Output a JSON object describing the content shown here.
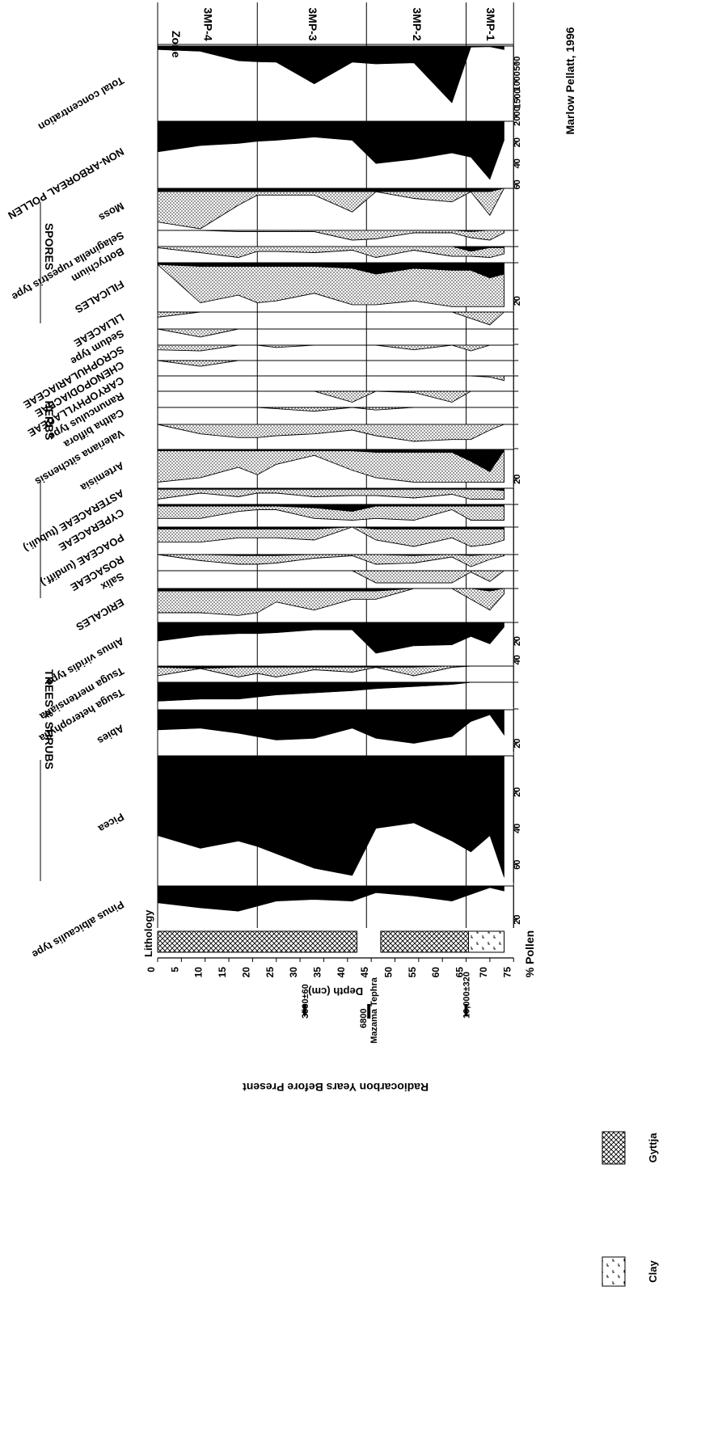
{
  "chart_data": {
    "type": "area",
    "orientation": "rotated-90-clockwise",
    "credit": "Marlow Pellatt, 1996",
    "depth_axis": {
      "label": "Depth (cm)",
      "ticks": [
        0,
        5,
        10,
        15,
        20,
        25,
        30,
        35,
        40,
        45,
        50,
        55,
        60,
        65,
        70,
        75
      ],
      "range": [
        0,
        75
      ]
    },
    "samples_depth": [
      0,
      9,
      17,
      21,
      25,
      33,
      41,
      46,
      54,
      62,
      66,
      70,
      73
    ],
    "radiocarbon": {
      "label": "Radiocarbon Years Before Present",
      "dates": [
        {
          "label": "3530±60",
          "depth": 31
        },
        {
          "label": "Mazama Tephra",
          "depth": 44.5
        },
        {
          "label": "6800",
          "depth": 44.5
        },
        {
          "label": "10,000±320",
          "depth": 65
        }
      ]
    },
    "lithology": {
      "label": "Lithology",
      "units": [
        {
          "type": "Gyttja",
          "from": 0,
          "to": 42
        },
        {
          "type": "Tephra gap",
          "from": 42,
          "to": 47
        },
        {
          "type": "Gyttja",
          "from": 47,
          "to": 65.5
        },
        {
          "type": "Clay",
          "from": 65.5,
          "to": 73
        }
      ],
      "legend": [
        "Gyttja",
        "Clay"
      ]
    },
    "pollen_axis_label": "% Pollen",
    "groups": [
      {
        "name": "TREES & SHRUBS"
      },
      {
        "name": "HERBS"
      },
      {
        "name": "SPORES"
      }
    ],
    "zones": {
      "header": "Zone",
      "boundaries": [
        21,
        44,
        65
      ],
      "labels": [
        {
          "name": "3MP-4",
          "from": 0,
          "to": 21
        },
        {
          "name": "3MP-3",
          "from": 21,
          "to": 44
        },
        {
          "name": "3MP-2",
          "from": 44,
          "to": 65
        },
        {
          "name": "3MP-1",
          "from": 65,
          "to": 75
        }
      ]
    },
    "series": [
      {
        "name": "Pinus albicaulis type",
        "max": 25,
        "ticks": [
          "20"
        ],
        "values": [
          10,
          13,
          15,
          12,
          9,
          8,
          9,
          4,
          6,
          9,
          5,
          1,
          3
        ]
      },
      {
        "name": "Picea",
        "max": 70,
        "ticks": [
          "20",
          "40",
          "60"
        ],
        "values": [
          44,
          51,
          47,
          50,
          54,
          62,
          66,
          40,
          37,
          47,
          53,
          44,
          67
        ]
      },
      {
        "name": "Abies",
        "max": 25,
        "ticks": [
          "20"
        ],
        "values": [
          12,
          11,
          14,
          16,
          18,
          17,
          11,
          17,
          20,
          16,
          7,
          3,
          15
        ]
      },
      {
        "name": "Tsuga heterophylla",
        "max": 12,
        "values": [
          9,
          8,
          8,
          7,
          6,
          5,
          4,
          3,
          2,
          1,
          0,
          0,
          0
        ],
        "exaggeration": [
          9,
          8,
          8,
          7,
          6,
          5,
          4,
          3,
          2,
          1,
          0,
          0,
          0
        ]
      },
      {
        "name": "Tsuga mertensiana",
        "max": 12,
        "values": [
          1,
          2,
          1,
          1,
          1,
          1,
          1,
          1,
          1,
          0,
          0,
          0,
          0
        ],
        "exaggeration": [
          8,
          2,
          9,
          6,
          9,
          3,
          5,
          1,
          8,
          1,
          0,
          0,
          0
        ]
      },
      {
        "name": "Alnus viridis type",
        "max": 45,
        "ticks": [
          "20",
          "40"
        ],
        "values": [
          20,
          14,
          12,
          12,
          11,
          8,
          8,
          33,
          25,
          24,
          15,
          23,
          5
        ]
      },
      {
        "name": "ERICALES",
        "max": 12,
        "values": [
          1,
          1,
          1,
          1,
          1,
          1,
          1,
          1,
          0,
          0,
          0,
          1,
          0
        ],
        "exaggeration": [
          9,
          9,
          10,
          9,
          5,
          8,
          4,
          4,
          0,
          0,
          4,
          8,
          2
        ]
      },
      {
        "name": "Salix",
        "max": 12,
        "values": [
          0,
          0,
          0,
          0,
          0,
          0,
          0,
          0,
          0,
          0,
          0,
          0,
          0
        ],
        "exaggeration": [
          0,
          0,
          0,
          0,
          0,
          0,
          0,
          9,
          9,
          9,
          1,
          8,
          0
        ]
      },
      {
        "name": "ROSACEAE",
        "max": 12,
        "values": [
          0,
          0,
          1,
          1,
          1,
          0,
          0,
          0,
          1,
          0,
          1,
          0,
          0
        ],
        "exaggeration": [
          0,
          5,
          8,
          8,
          7,
          3,
          1,
          8,
          7,
          2,
          10,
          4,
          1
        ]
      },
      {
        "name": "POACEAE (undiff.)",
        "max": 12,
        "values": [
          1,
          1,
          1,
          1,
          1,
          1,
          0,
          1,
          1,
          1,
          1,
          1,
          1
        ],
        "exaggeration": [
          7,
          7,
          5,
          5,
          5,
          6,
          0,
          6,
          9,
          5,
          9,
          8,
          6
        ]
      },
      {
        "name": "CYPERACEAE",
        "max": 12,
        "values": [
          1,
          1,
          1,
          1,
          1,
          2,
          4,
          1,
          1,
          1,
          1,
          1,
          1
        ],
        "exaggeration": [
          8,
          8,
          4,
          3,
          3,
          8,
          9,
          8,
          9,
          3,
          9,
          9,
          9
        ]
      },
      {
        "name": "ASTERACEAE (tubuli.)",
        "max": 12,
        "values": [
          1,
          1,
          1,
          1,
          1,
          1,
          1,
          1,
          1,
          1,
          1,
          1,
          2
        ],
        "exaggeration": [
          9,
          4,
          7,
          4,
          4,
          7,
          6,
          6,
          8,
          5,
          9,
          9,
          9
        ]
      },
      {
        "name": "Artemisia",
        "max": 25,
        "ticks": [
          "20"
        ],
        "values": [
          1,
          1,
          1,
          1,
          1,
          1,
          1,
          2,
          2,
          2,
          8,
          15,
          1
        ],
        "exaggeration": [
          22,
          19,
          12,
          17,
          10,
          4,
          14,
          19,
          22,
          22,
          22,
          22,
          22
        ]
      },
      {
        "name": "Valeriana sitchensis",
        "max": 12,
        "values": [
          0,
          0,
          0,
          0,
          0,
          0,
          0,
          0,
          0,
          0,
          0,
          0,
          0
        ],
        "exaggeration": [
          0,
          5,
          7,
          7,
          6,
          5,
          3,
          6,
          9,
          8,
          8,
          3,
          0
        ]
      },
      {
        "name": "Caltha biflora",
        "max": 12,
        "values": [
          0,
          0,
          0,
          0,
          0,
          0,
          0,
          0,
          0,
          0,
          0,
          0,
          0
        ],
        "exaggeration": [
          0,
          0,
          0,
          0,
          1,
          3,
          0,
          2,
          0,
          0,
          0,
          0,
          0
        ]
      },
      {
        "name": "Ranunculus type",
        "max": 12,
        "values": [
          0,
          0,
          0,
          0,
          0,
          0,
          0,
          0,
          0,
          0,
          0,
          0,
          0
        ],
        "exaggeration": [
          0,
          0,
          0,
          0,
          0,
          0,
          9,
          0,
          1,
          9,
          0,
          0,
          0
        ]
      },
      {
        "name": "CARYOPHYLLACEAE",
        "max": 12,
        "values": [
          0,
          0,
          0,
          0,
          0,
          0,
          0,
          0,
          0,
          0,
          0,
          0,
          0
        ],
        "exaggeration": [
          0,
          0,
          0,
          0,
          0,
          0,
          0,
          0,
          0,
          0,
          0,
          1,
          4
        ]
      },
      {
        "name": "CHENOPODIACEAE",
        "max": 12,
        "values": [
          0,
          0,
          0,
          0,
          0,
          0,
          0,
          0,
          0,
          0,
          0,
          0,
          0
        ],
        "exaggeration": [
          0,
          5,
          0,
          0,
          0,
          0,
          0,
          0,
          0,
          0,
          0,
          0,
          0
        ]
      },
      {
        "name": "SCROPHULARIACEAE",
        "max": 12,
        "values": [
          0,
          0,
          0,
          0,
          0,
          0,
          0,
          0,
          0,
          0,
          0,
          0,
          0
        ],
        "exaggeration": [
          4,
          5,
          0,
          0,
          2,
          0,
          0,
          0,
          4,
          0,
          5,
          0,
          0
        ]
      },
      {
        "name": "Sedum type",
        "max": 12,
        "values": [
          0,
          0,
          0,
          0,
          0,
          0,
          0,
          0,
          0,
          0,
          0,
          0,
          0
        ],
        "exaggeration": [
          0,
          7,
          0,
          0,
          0,
          0,
          0,
          0,
          0,
          0,
          0,
          0,
          0
        ]
      },
      {
        "name": "LILIACEAE",
        "max": 12,
        "values": [
          0,
          0,
          0,
          0,
          0,
          0,
          0,
          0,
          0,
          0,
          0,
          0,
          0
        ],
        "exaggeration": [
          4,
          0,
          0,
          0,
          0,
          0,
          0,
          0,
          0,
          0,
          5,
          10,
          0
        ]
      },
      {
        "name": "FILICALES",
        "max": 25,
        "ticks": [
          "20"
        ],
        "values": [
          1,
          2,
          2,
          2,
          2,
          2,
          3,
          6,
          3,
          4,
          4,
          8,
          6
        ],
        "exaggeration": [
          1,
          21,
          17,
          21,
          20,
          16,
          22,
          22,
          20,
          23,
          23,
          23,
          23
        ]
      },
      {
        "name": "Botrychium",
        "max": 12,
        "values": [
          0,
          0,
          0,
          0,
          0,
          0,
          0,
          0,
          0,
          0,
          4,
          1,
          1
        ],
        "exaggeration": [
          1,
          5,
          9,
          4,
          4,
          5,
          3,
          9,
          3,
          8,
          8,
          9,
          6
        ]
      },
      {
        "name": "Selaginella rupestris type",
        "max": 12,
        "values": [
          0,
          0,
          0,
          0,
          0,
          0,
          0,
          0,
          0,
          0,
          1,
          0,
          0
        ],
        "exaggeration": [
          0,
          0,
          1,
          1,
          1,
          1,
          8,
          7,
          2,
          2,
          6,
          8,
          2
        ]
      },
      {
        "name": "Moss",
        "max": 12,
        "values": [
          1,
          1,
          1,
          1,
          1,
          1,
          1,
          1,
          1,
          1,
          1,
          1,
          0
        ],
        "exaggeration": [
          10,
          12,
          5,
          2,
          2,
          2,
          7,
          1,
          3,
          4,
          1,
          8,
          0
        ]
      },
      {
        "name": "NON-ARBOREAL POLLEN",
        "max": 62,
        "ticks": [
          "20",
          "40",
          "60"
        ],
        "values": [
          29,
          23,
          21,
          19,
          18,
          15,
          18,
          40,
          36,
          30,
          34,
          55,
          18
        ]
      },
      {
        "name": "Total concentration",
        "max": 2100,
        "ticks": [
          "500",
          "1000",
          "1500",
          "2000"
        ],
        "values": [
          100,
          150,
          420,
          450,
          460,
          1080,
          460,
          510,
          480,
          1620,
          30,
          20,
          100
        ]
      }
    ]
  }
}
